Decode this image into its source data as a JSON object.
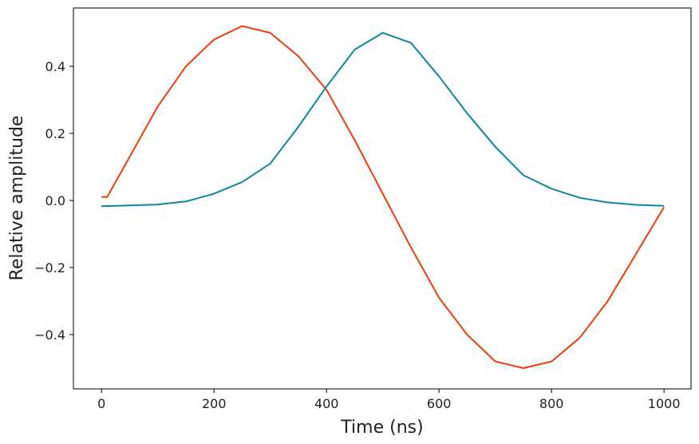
{
  "chart_data": {
    "type": "line",
    "title": "",
    "xlabel": "Time (ns)",
    "ylabel": "Relative amplitude",
    "xlim": [
      -50,
      1048
    ],
    "ylim": [
      -0.562,
      0.574
    ],
    "xticks": [
      0,
      200,
      400,
      600,
      800,
      1000
    ],
    "yticks": [
      -0.4,
      -0.2,
      0.0,
      0.2,
      0.4
    ],
    "xtick_labels": [
      "0",
      "200",
      "400",
      "600",
      "800",
      "1000"
    ],
    "ytick_labels": [
      "−0.4",
      "−0.2",
      "0.0",
      "0.2",
      "0.4"
    ],
    "grid": false,
    "series": [
      {
        "color": "#f03c0a",
        "x": [
          0,
          10,
          50,
          100,
          150,
          200,
          250,
          300,
          350,
          400,
          450,
          500,
          550,
          600,
          650,
          700,
          750,
          800,
          850,
          900,
          950,
          1000
        ],
        "y": [
          0.01,
          0.01,
          0.13,
          0.28,
          0.4,
          0.48,
          0.52,
          0.5,
          0.43,
          0.33,
          0.18,
          0.02,
          -0.14,
          -0.29,
          -0.4,
          -0.48,
          -0.5,
          -0.48,
          -0.41,
          -0.3,
          -0.16,
          -0.02
        ]
      },
      {
        "color": "#0e869e",
        "x": [
          0,
          50,
          100,
          150,
          200,
          250,
          300,
          350,
          400,
          450,
          500,
          550,
          600,
          650,
          700,
          750,
          800,
          850,
          900,
          950,
          1000
        ],
        "y": [
          -0.017,
          -0.015,
          -0.012,
          -0.003,
          0.02,
          0.055,
          0.11,
          0.22,
          0.34,
          0.45,
          0.5,
          0.47,
          0.37,
          0.26,
          0.16,
          0.075,
          0.035,
          0.008,
          -0.006,
          -0.013,
          -0.016
        ]
      }
    ]
  }
}
